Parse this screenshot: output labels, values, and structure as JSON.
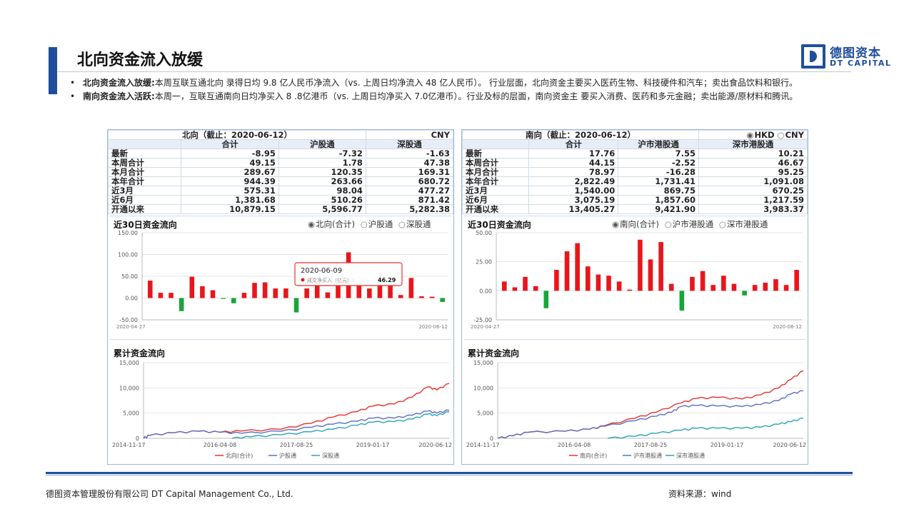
{
  "header": {
    "title": "北向资金流入放缓",
    "logo_cn": "德图资本",
    "logo_en": "DT CAPITAL"
  },
  "bullets": [
    {
      "bold": "北向资金流入放缓:",
      "text": "本周互联互通北向 录得日均 9.8 亿人民币净流入（vs. 上周日均净流入 48 亿人民币）。 行业层面，北向资金主要买入医药生物、科技硬件和汽车；卖出食品饮料和银行。"
    },
    {
      "bold": "南向资金流入活跃:",
      "text": "本周一，互联互通南向日均净买入 8 .8亿港币（vs. 上周日均净买入 7.0亿港币）。行业及标的层面，南向资金主 要买入消费、医药和多元金融；卖出能源/原材料和腾讯。"
    }
  ],
  "north": {
    "table_title": "北向（截止：2020-06-12）",
    "currency": "CNY",
    "columns": [
      "合计",
      "沪股通",
      "深股通"
    ],
    "rows": [
      {
        "label": "最新",
        "values": [
          "-8.95",
          "-7.32",
          "-1.63"
        ]
      },
      {
        "label": "本周合计",
        "values": [
          "49.15",
          "1.78",
          "47.38"
        ]
      },
      {
        "label": "本月合计",
        "values": [
          "289.67",
          "120.35",
          "169.31"
        ]
      },
      {
        "label": "本年合计",
        "values": [
          "944.39",
          "263.66",
          "680.72"
        ]
      },
      {
        "label": "近3月",
        "values": [
          "575.31",
          "98.04",
          "477.27"
        ]
      },
      {
        "label": "近6月",
        "values": [
          "1,381.68",
          "510.26",
          "871.42"
        ]
      },
      {
        "label": "开通以来",
        "values": [
          "10,879.15",
          "5,596.77",
          "5,282.38"
        ]
      }
    ],
    "flow_title": "近30日资金流向",
    "flow_legend": [
      "北向(合计)",
      "沪股通",
      "深股通"
    ],
    "cum_title": "累计资金流向",
    "cum_legend": [
      "北向(合计)",
      "沪股通",
      "深股通"
    ],
    "tooltip": {
      "date": "2020-06-09",
      "label": "成交净买入（亿元）:",
      "value": "46.29"
    }
  },
  "south": {
    "table_title": "南向（截止：2020-06-12）",
    "currency_options": [
      "HKD",
      "CNY"
    ],
    "columns": [
      "合计",
      "沪市港股通",
      "深市港股通"
    ],
    "rows": [
      {
        "label": "最新",
        "values": [
          "17.76",
          "7.55",
          "10.21"
        ]
      },
      {
        "label": "本周合计",
        "values": [
          "44.15",
          "-2.52",
          "46.67"
        ]
      },
      {
        "label": "本月合计",
        "values": [
          "78.97",
          "-16.28",
          "95.25"
        ]
      },
      {
        "label": "本年合计",
        "values": [
          "2,822.49",
          "1,731.41",
          "1,091.08"
        ]
      },
      {
        "label": "近3月",
        "values": [
          "1,540.00",
          "869.75",
          "670.25"
        ]
      },
      {
        "label": "近6月",
        "values": [
          "3,075.19",
          "1,857.60",
          "1,217.59"
        ]
      },
      {
        "label": "开通以来",
        "values": [
          "13,405.27",
          "9,421.90",
          "3,983.37"
        ]
      }
    ],
    "flow_title": "近30日资金流向",
    "flow_legend": [
      "南向(合计)",
      "沪市港股通",
      "深市港股通"
    ],
    "cum_title": "累计资金流向",
    "cum_legend": [
      "南向(合计)",
      "沪市港股通",
      "深市港股通"
    ]
  },
  "colors": {
    "positive": "#e8161b",
    "negative": "#19a53a",
    "total": "#e8322f",
    "sh": "#5a6fc4",
    "sz": "#2aa3b8",
    "accent": "#1f4e9c"
  },
  "chart_data": [
    {
      "type": "bar",
      "title": "近30日资金流向",
      "x_start": "2020-04-27",
      "x_end": "2020-06-12",
      "ylim": [
        -50,
        150
      ],
      "yticks": [
        "150.00",
        "100.00",
        "50.00",
        "0.00",
        "-50.00"
      ],
      "values": [
        40,
        12,
        12,
        -30,
        49,
        27,
        18,
        -2,
        -12,
        12,
        35,
        36,
        22,
        22,
        -33,
        22,
        46,
        13,
        48,
        105,
        34,
        22,
        38,
        33,
        7,
        46,
        4,
        3,
        -9
      ]
    },
    {
      "type": "line",
      "title": "累计资金流向",
      "x_ticks": [
        "2014-11-17",
        "2016-04-08",
        "2017-08-25",
        "2019-01-17",
        "2020-06-12"
      ],
      "ylim": [
        0,
        15000
      ],
      "yticks": [
        "15,000",
        "10,000",
        "5,000",
        "0"
      ],
      "series": [
        {
          "name": "北向(合计)",
          "points": [
            [
              0,
              0
            ],
            [
              0.02,
              600
            ],
            [
              0.1,
              1100
            ],
            [
              0.18,
              1400
            ],
            [
              0.25,
              1200
            ],
            [
              0.32,
              1450
            ],
            [
              0.45,
              1800
            ],
            [
              0.55,
              3000
            ],
            [
              0.62,
              4200
            ],
            [
              0.7,
              5300
            ],
            [
              0.75,
              6400
            ],
            [
              0.82,
              6800
            ],
            [
              0.88,
              8200
            ],
            [
              0.93,
              10200
            ],
            [
              0.96,
              9600
            ],
            [
              1,
              10879
            ]
          ]
        },
        {
          "name": "沪股通",
          "points": [
            [
              0,
              0
            ],
            [
              0.02,
              600
            ],
            [
              0.1,
              1100
            ],
            [
              0.18,
              1400
            ],
            [
              0.25,
              1200
            ],
            [
              0.32,
              1000
            ],
            [
              0.45,
              1400
            ],
            [
              0.55,
              2200
            ],
            [
              0.62,
              2800
            ],
            [
              0.7,
              3400
            ],
            [
              0.75,
              4000
            ],
            [
              0.82,
              4000
            ],
            [
              0.88,
              4600
            ],
            [
              0.93,
              5400
            ],
            [
              0.96,
              5000
            ],
            [
              1,
              5597
            ]
          ]
        },
        {
          "name": "深股通",
          "points": [
            [
              0.29,
              0
            ],
            [
              0.35,
              300
            ],
            [
              0.45,
              700
            ],
            [
              0.55,
              1300
            ],
            [
              0.62,
              1800
            ],
            [
              0.7,
              2600
            ],
            [
              0.75,
              3200
            ],
            [
              0.82,
              3300
            ],
            [
              0.88,
              3800
            ],
            [
              0.93,
              4800
            ],
            [
              0.96,
              4500
            ],
            [
              1,
              5282
            ]
          ]
        }
      ]
    },
    {
      "type": "bar",
      "title": "近30日资金流向",
      "x_start": "2020-04-27",
      "x_end": "2020-06-12",
      "ylim": [
        -25,
        50
      ],
      "yticks": [
        "50.00",
        "25.00",
        "0.00",
        "-25.00"
      ],
      "values": [
        8,
        3,
        12,
        4,
        -15,
        18,
        34,
        41,
        21,
        14,
        13,
        8,
        1,
        44,
        27,
        42,
        6,
        -17,
        12,
        17,
        5,
        13,
        6,
        -4,
        5,
        7,
        10,
        5,
        18
      ]
    },
    {
      "type": "line",
      "title": "累计资金流向",
      "x_ticks": [
        "2014-11-17",
        "2016-04-08",
        "2017-08-25",
        "2019-01-17",
        "2020-06-12"
      ],
      "ylim": [
        0,
        15000
      ],
      "yticks": [
        "15,000",
        "10,000",
        "5,000",
        "0"
      ],
      "series": [
        {
          "name": "南向(合计)",
          "points": [
            [
              0,
              0
            ],
            [
              0.05,
              500
            ],
            [
              0.1,
              1200
            ],
            [
              0.22,
              1400
            ],
            [
              0.3,
              1800
            ],
            [
              0.35,
              2500
            ],
            [
              0.45,
              4000
            ],
            [
              0.52,
              5200
            ],
            [
              0.6,
              7000
            ],
            [
              0.65,
              7900
            ],
            [
              0.72,
              8100
            ],
            [
              0.8,
              7800
            ],
            [
              0.86,
              8600
            ],
            [
              0.92,
              10000
            ],
            [
              0.96,
              11700
            ],
            [
              1,
              13405
            ]
          ]
        },
        {
          "name": "沪市港股通",
          "points": [
            [
              0,
              0
            ],
            [
              0.05,
              500
            ],
            [
              0.1,
              1200
            ],
            [
              0.22,
              1400
            ],
            [
              0.3,
              1800
            ],
            [
              0.35,
              2400
            ],
            [
              0.45,
              3500
            ],
            [
              0.52,
              4400
            ],
            [
              0.57,
              5200
            ],
            [
              0.6,
              6300
            ],
            [
              0.65,
              6500
            ],
            [
              0.72,
              6400
            ],
            [
              0.8,
              6300
            ],
            [
              0.86,
              6700
            ],
            [
              0.92,
              7500
            ],
            [
              0.96,
              8800
            ],
            [
              1,
              9422
            ]
          ]
        },
        {
          "name": "深市港股通",
          "points": [
            [
              0.36,
              0
            ],
            [
              0.45,
              400
            ],
            [
              0.52,
              1000
            ],
            [
              0.6,
              1600
            ],
            [
              0.65,
              2000
            ],
            [
              0.72,
              2000
            ],
            [
              0.8,
              2000
            ],
            [
              0.86,
              2200
            ],
            [
              0.92,
              2800
            ],
            [
              0.96,
              3300
            ],
            [
              1,
              3983
            ]
          ]
        }
      ]
    }
  ],
  "footer": {
    "company": "德图资本管理股份有限公司  DT Capital  Management  Co., Ltd.",
    "source": "资料来源：wind"
  }
}
